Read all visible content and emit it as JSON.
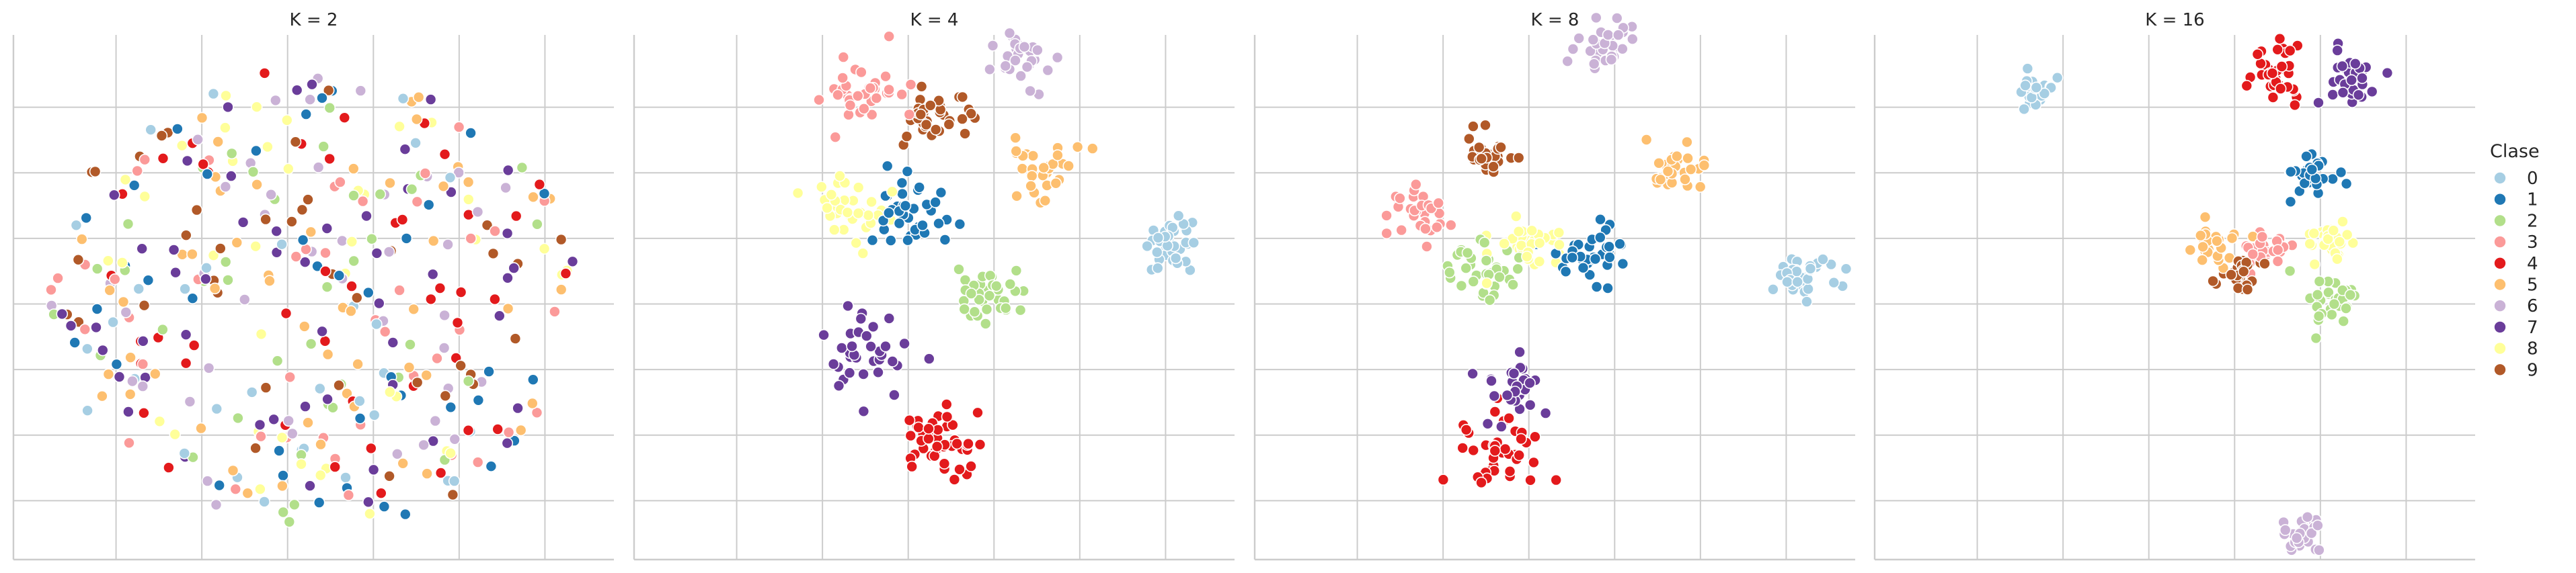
{
  "chart_data": {
    "type": "scatter",
    "grid": true,
    "legend_position": "right",
    "legend": {
      "title": "Clase",
      "entries": [
        {
          "label": "0",
          "color": "#a6cee3"
        },
        {
          "label": "1",
          "color": "#1f78b4"
        },
        {
          "label": "2",
          "color": "#b2df8a"
        },
        {
          "label": "3",
          "color": "#fb9a99"
        },
        {
          "label": "4",
          "color": "#e31a1c"
        },
        {
          "label": "5",
          "color": "#fdbf6f"
        },
        {
          "label": "6",
          "color": "#cab2d6"
        },
        {
          "label": "7",
          "color": "#6a3d9a"
        },
        {
          "label": "8",
          "color": "#ffff99"
        },
        {
          "label": "9",
          "color": "#b15928"
        }
      ]
    },
    "panels": [
      {
        "title": "K = 2",
        "xlim": [
          -2.6,
          2.6
        ],
        "ylim": [
          -2.6,
          2.6
        ],
        "random_points": {
          "seed": 7,
          "count": 420,
          "radius": 2.3
        }
      },
      {
        "title": "K = 4",
        "xlim": [
          -7.5,
          7.5
        ],
        "ylim": [
          -7.5,
          7.5
        ],
        "clusters": [
          {
            "label": "0",
            "x": 6.0,
            "y": 1.5,
            "spread": 0.45,
            "n": 40
          },
          {
            "label": "1",
            "x": -0.5,
            "y": 2.5,
            "spread": 0.5,
            "n": 40
          },
          {
            "label": "2",
            "x": 1.3,
            "y": 0.0,
            "spread": 0.45,
            "n": 35
          },
          {
            "label": "3",
            "x": -1.8,
            "y": 5.8,
            "spread": 0.5,
            "n": 35
          },
          {
            "label": "4",
            "x": 0.2,
            "y": -4.0,
            "spread": 0.55,
            "n": 45
          },
          {
            "label": "5",
            "x": 2.6,
            "y": 3.6,
            "spread": 0.45,
            "n": 30
          },
          {
            "label": "6",
            "x": 2.3,
            "y": 7.0,
            "spread": 0.4,
            "n": 30
          },
          {
            "label": "7",
            "x": -1.8,
            "y": -1.7,
            "spread": 0.55,
            "n": 35
          },
          {
            "label": "8",
            "x": -2.2,
            "y": 2.7,
            "spread": 0.45,
            "n": 35
          },
          {
            "label": "9",
            "x": 0.1,
            "y": 5.2,
            "spread": 0.45,
            "n": 40
          }
        ]
      },
      {
        "title": "K = 8",
        "xlim": [
          -7.5,
          7.5
        ],
        "ylim": [
          -7.5,
          7.5
        ],
        "clusters": [
          {
            "label": "0",
            "x": 6.2,
            "y": 0.6,
            "spread": 0.35,
            "n": 35
          },
          {
            "label": "1",
            "x": 0.9,
            "y": 1.3,
            "spread": 0.45,
            "n": 40
          },
          {
            "label": "2",
            "x": -1.8,
            "y": 0.7,
            "spread": 0.45,
            "n": 35
          },
          {
            "label": "3",
            "x": -3.5,
            "y": 2.4,
            "spread": 0.4,
            "n": 30
          },
          {
            "label": "4",
            "x": -1.4,
            "y": -4.4,
            "spread": 0.55,
            "n": 40
          },
          {
            "label": "5",
            "x": 3.0,
            "y": 3.5,
            "spread": 0.4,
            "n": 30
          },
          {
            "label": "6",
            "x": 1.3,
            "y": 7.2,
            "spread": 0.35,
            "n": 30
          },
          {
            "label": "7",
            "x": -1.0,
            "y": -2.6,
            "spread": 0.4,
            "n": 30
          },
          {
            "label": "8",
            "x": -0.6,
            "y": 1.6,
            "spread": 0.45,
            "n": 35
          },
          {
            "label": "9",
            "x": -1.7,
            "y": 4.0,
            "spread": 0.3,
            "n": 30
          }
        ]
      },
      {
        "title": "K = 16",
        "xlim": [
          -7.5,
          7.5
        ],
        "ylim": [
          -7.5,
          7.5
        ],
        "clusters": [
          {
            "label": "0",
            "x": -3.6,
            "y": 6.0,
            "spread": 0.25,
            "n": 25
          },
          {
            "label": "1",
            "x": 3.4,
            "y": 3.5,
            "spread": 0.3,
            "n": 30
          },
          {
            "label": "2",
            "x": 4.0,
            "y": -0.2,
            "spread": 0.35,
            "n": 30
          },
          {
            "label": "3",
            "x": 2.3,
            "y": 1.3,
            "spread": 0.3,
            "n": 25
          },
          {
            "label": "4",
            "x": 2.5,
            "y": 6.5,
            "spread": 0.4,
            "n": 35
          },
          {
            "label": "5",
            "x": 1.1,
            "y": 1.5,
            "spread": 0.3,
            "n": 25
          },
          {
            "label": "6",
            "x": 3.2,
            "y": -6.8,
            "spread": 0.3,
            "n": 25
          },
          {
            "label": "7",
            "x": 4.3,
            "y": 6.2,
            "spread": 0.35,
            "n": 30
          },
          {
            "label": "8",
            "x": 3.8,
            "y": 1.6,
            "spread": 0.3,
            "n": 30
          },
          {
            "label": "9",
            "x": 1.6,
            "y": 0.7,
            "spread": 0.3,
            "n": 25
          }
        ]
      }
    ]
  }
}
